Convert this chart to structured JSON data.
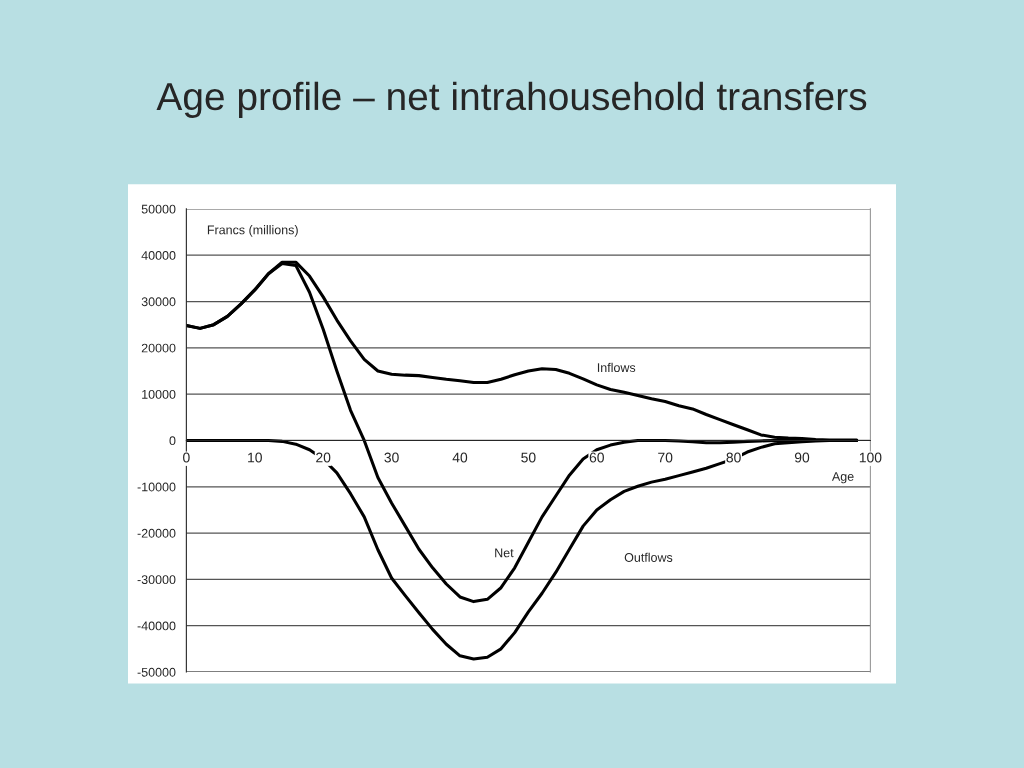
{
  "chart_data": {
    "type": "line",
    "title": "Age profile – net intrahousehold transfers",
    "xlabel": "Age",
    "ylabel": "Francs (millions)",
    "x": [
      0,
      2,
      4,
      6,
      8,
      10,
      12,
      14,
      16,
      18,
      20,
      22,
      24,
      26,
      28,
      30,
      32,
      34,
      36,
      38,
      40,
      42,
      44,
      46,
      48,
      50,
      52,
      54,
      56,
      58,
      60,
      62,
      64,
      66,
      68,
      70,
      72,
      74,
      76,
      78,
      80,
      82,
      84,
      86,
      88,
      90,
      92,
      94,
      96,
      98
    ],
    "series": [
      {
        "color": "#000000",
        "values": [
          24800,
          24200,
          25000,
          26800,
          29500,
          32500,
          36000,
          38500,
          38500,
          35500,
          31000,
          26000,
          21500,
          17500,
          15000,
          14300,
          14100,
          14000,
          13600,
          13200,
          12900,
          12500,
          12500,
          13200,
          14200,
          15000,
          15500,
          15300,
          14500,
          13300,
          12000,
          11000,
          10400,
          9700,
          9000,
          8400,
          7500,
          6800,
          5600,
          4500,
          3400,
          2300,
          1200,
          700,
          500,
          400,
          200,
          100,
          100,
          100
        ]
      },
      {
        "color": "#000000",
        "values": [
          24800,
          24200,
          25000,
          26800,
          29500,
          32500,
          36000,
          38200,
          37800,
          32000,
          24000,
          15000,
          6500,
          0,
          -8000,
          -13500,
          -18500,
          -23500,
          -27500,
          -31000,
          -33800,
          -34800,
          -34300,
          -31800,
          -27500,
          -22000,
          -16500,
          -12000,
          -7500,
          -4000,
          -2000,
          -1000,
          -400,
          0,
          0,
          0,
          -100,
          -300,
          -500,
          -500,
          -400,
          -200,
          -100,
          0,
          0,
          0,
          0,
          0,
          0,
          0
        ]
      },
      {
        "color": "#000000",
        "values": [
          0,
          0,
          0,
          0,
          0,
          0,
          0,
          -200,
          -800,
          -2000,
          -4000,
          -7000,
          -11500,
          -16500,
          -23600,
          -29700,
          -33500,
          -37200,
          -40800,
          -44000,
          -46500,
          -47200,
          -46800,
          -45000,
          -41500,
          -37000,
          -33000,
          -28500,
          -23500,
          -18500,
          -15000,
          -12800,
          -11000,
          -9900,
          -9000,
          -8400,
          -7600,
          -6800,
          -6000,
          -5000,
          -4000,
          -2500,
          -1500,
          -700,
          -500,
          -300,
          -100,
          0,
          0,
          0
        ]
      }
    ],
    "annotations": [
      "Inflows",
      "Net",
      "Outflows"
    ],
    "xlim": [
      0,
      100
    ],
    "xticks": [
      0,
      10,
      20,
      30,
      40,
      50,
      60,
      70,
      80,
      90,
      100
    ],
    "ylim": [
      -50000,
      50000
    ],
    "yticks": [
      -50000,
      -40000,
      -30000,
      -20000,
      -10000,
      0,
      10000,
      20000,
      30000,
      40000,
      50000
    ],
    "grid": "y",
    "legend": false,
    "marker": "none",
    "line_style": "solid"
  }
}
